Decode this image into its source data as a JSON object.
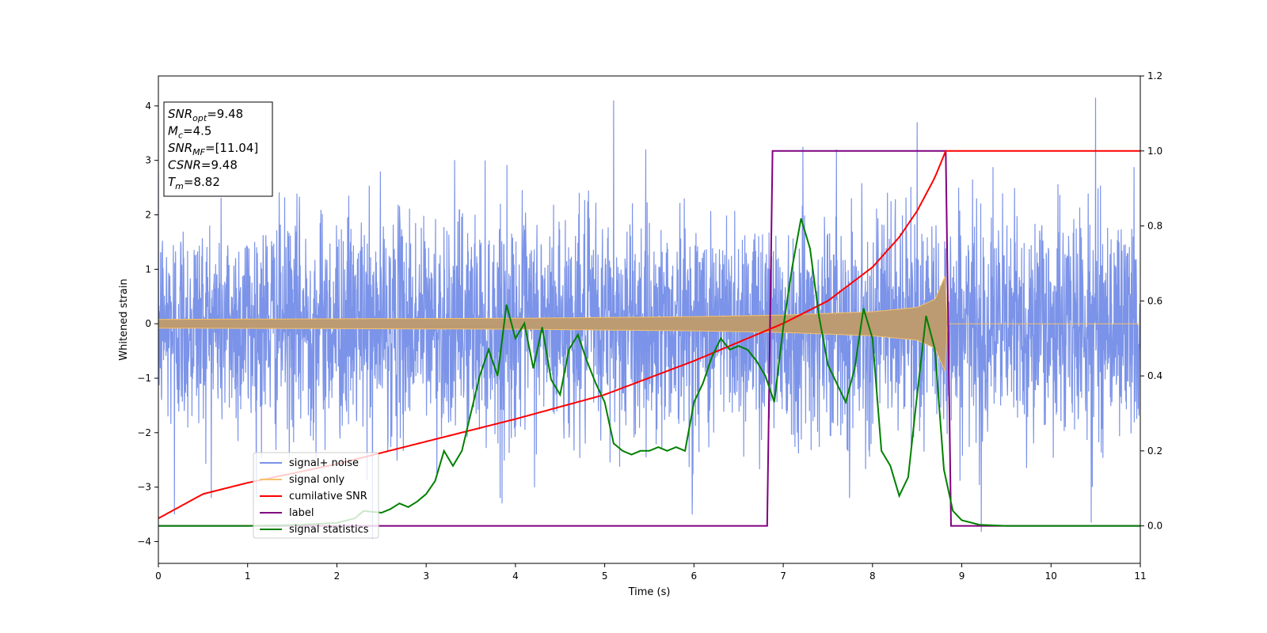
{
  "chart_data": {
    "type": "line",
    "xlabel": "Time (s)",
    "ylabel": "Whitened strain",
    "xlim": [
      0,
      11
    ],
    "ylim_left": [
      -4.4,
      4.55
    ],
    "ylim_right": [
      -0.1,
      1.2
    ],
    "x_ticks": [
      "0",
      "1",
      "2",
      "3",
      "4",
      "5",
      "6",
      "7",
      "8",
      "9",
      "10",
      "11"
    ],
    "y_ticks_left": [
      "−4",
      "−3",
      "−2",
      "−1",
      "0",
      "1",
      "2",
      "3",
      "4"
    ],
    "y_ticks_right": [
      "0.0",
      "0.2",
      "0.4",
      "0.6",
      "0.8",
      "1.0",
      "1.2"
    ],
    "annotation": {
      "lines": [
        {
          "name": "SNR",
          "sub": "opt",
          "value": "=9.48"
        },
        {
          "name": "M",
          "sub": "c",
          "value": "=4.5"
        },
        {
          "name": "SNR",
          "sub": "MF",
          "value": "=[11.04]"
        },
        {
          "name": "CSNR",
          "sub": "",
          "value": "=9.48"
        },
        {
          "name": "T",
          "sub": "m",
          "value": "=8.82"
        }
      ]
    },
    "legend": {
      "placement": "lower-left",
      "entries": [
        {
          "label": "signal+ noise",
          "color": "#7b93e8"
        },
        {
          "label": "signal only",
          "color": "#f5c26b"
        },
        {
          "label": "cumilative SNR",
          "color": "#ff0000"
        },
        {
          "label": "label",
          "color": "#800080"
        },
        {
          "label": "signal statistics",
          "color": "#008000"
        }
      ]
    },
    "series": [
      {
        "name": "signal+ noise",
        "axis": "left",
        "color": "#7b93e8",
        "noise_std": 1.0,
        "x_range": [
          0,
          11
        ],
        "extreme_peaks": [
          {
            "x": 5.1,
            "y": 4.1
          },
          {
            "x": 10.5,
            "y": 4.15
          },
          {
            "x": 8.5,
            "y": 3.7
          },
          {
            "x": 2.4,
            "y": 3.4
          },
          {
            "x": 7.22,
            "y": 3.25
          },
          {
            "x": 0.18,
            "y": -3.5
          },
          {
            "x": 2.4,
            "y": -3.95
          },
          {
            "x": 9.22,
            "y": -3.82
          },
          {
            "x": 10.45,
            "y": -3.65
          },
          {
            "x": 5.98,
            "y": -3.5
          },
          {
            "x": 3.85,
            "y": -3.3
          }
        ]
      },
      {
        "name": "signal only",
        "axis": "left",
        "color": "#f5c26b",
        "envelope_points": [
          {
            "x": 0,
            "y": 0.08
          },
          {
            "x": 2,
            "y": 0.09
          },
          {
            "x": 4,
            "y": 0.1
          },
          {
            "x": 6,
            "y": 0.13
          },
          {
            "x": 7,
            "y": 0.16
          },
          {
            "x": 8,
            "y": 0.22
          },
          {
            "x": 8.5,
            "y": 0.3
          },
          {
            "x": 8.7,
            "y": 0.45
          },
          {
            "x": 8.78,
            "y": 0.75
          },
          {
            "x": 8.82,
            "y": 0.9
          },
          {
            "x": 8.83,
            "y": 0
          },
          {
            "x": 11,
            "y": 0
          }
        ]
      },
      {
        "name": "cumilative SNR",
        "axis": "right",
        "color": "#ff0000",
        "points": [
          {
            "x": 0,
            "y": 0.02
          },
          {
            "x": 0.5,
            "y": 0.085
          },
          {
            "x": 1,
            "y": 0.115
          },
          {
            "x": 2,
            "y": 0.165
          },
          {
            "x": 3,
            "y": 0.225
          },
          {
            "x": 4,
            "y": 0.285
          },
          {
            "x": 5,
            "y": 0.35
          },
          {
            "x": 6,
            "y": 0.44
          },
          {
            "x": 7,
            "y": 0.54
          },
          {
            "x": 7.5,
            "y": 0.6
          },
          {
            "x": 8,
            "y": 0.69
          },
          {
            "x": 8.3,
            "y": 0.77
          },
          {
            "x": 8.5,
            "y": 0.84
          },
          {
            "x": 8.7,
            "y": 0.93
          },
          {
            "x": 8.82,
            "y": 1.0
          },
          {
            "x": 11,
            "y": 1.0
          }
        ]
      },
      {
        "name": "label",
        "axis": "right",
        "color": "#800080",
        "points": [
          {
            "x": 0,
            "y": 0.0
          },
          {
            "x": 6.82,
            "y": 0.0
          },
          {
            "x": 6.88,
            "y": 1.0
          },
          {
            "x": 8.82,
            "y": 1.0
          },
          {
            "x": 8.88,
            "y": 0.0
          },
          {
            "x": 11,
            "y": 0.0
          }
        ]
      },
      {
        "name": "signal statistics",
        "axis": "right",
        "color": "#008000",
        "points": [
          {
            "x": 0,
            "y": 0.0
          },
          {
            "x": 1,
            "y": 0.0
          },
          {
            "x": 1.6,
            "y": 0.003
          },
          {
            "x": 2.0,
            "y": 0.008
          },
          {
            "x": 2.2,
            "y": 0.02
          },
          {
            "x": 2.3,
            "y": 0.04
          },
          {
            "x": 2.5,
            "y": 0.035
          },
          {
            "x": 2.6,
            "y": 0.045
          },
          {
            "x": 2.7,
            "y": 0.06
          },
          {
            "x": 2.8,
            "y": 0.05
          },
          {
            "x": 2.9,
            "y": 0.065
          },
          {
            "x": 3.0,
            "y": 0.085
          },
          {
            "x": 3.1,
            "y": 0.12
          },
          {
            "x": 3.2,
            "y": 0.2
          },
          {
            "x": 3.3,
            "y": 0.16
          },
          {
            "x": 3.4,
            "y": 0.2
          },
          {
            "x": 3.5,
            "y": 0.3
          },
          {
            "x": 3.6,
            "y": 0.4
          },
          {
            "x": 3.7,
            "y": 0.47
          },
          {
            "x": 3.8,
            "y": 0.4
          },
          {
            "x": 3.9,
            "y": 0.59
          },
          {
            "x": 4.0,
            "y": 0.5
          },
          {
            "x": 4.1,
            "y": 0.54
          },
          {
            "x": 4.2,
            "y": 0.42
          },
          {
            "x": 4.3,
            "y": 0.53
          },
          {
            "x": 4.4,
            "y": 0.39
          },
          {
            "x": 4.5,
            "y": 0.35
          },
          {
            "x": 4.6,
            "y": 0.47
          },
          {
            "x": 4.7,
            "y": 0.51
          },
          {
            "x": 4.8,
            "y": 0.44
          },
          {
            "x": 4.9,
            "y": 0.38
          },
          {
            "x": 5.0,
            "y": 0.33
          },
          {
            "x": 5.1,
            "y": 0.22
          },
          {
            "x": 5.2,
            "y": 0.2
          },
          {
            "x": 5.3,
            "y": 0.19
          },
          {
            "x": 5.4,
            "y": 0.2
          },
          {
            "x": 5.5,
            "y": 0.2
          },
          {
            "x": 5.6,
            "y": 0.21
          },
          {
            "x": 5.7,
            "y": 0.2
          },
          {
            "x": 5.8,
            "y": 0.21
          },
          {
            "x": 5.9,
            "y": 0.2
          },
          {
            "x": 6.0,
            "y": 0.33
          },
          {
            "x": 6.1,
            "y": 0.38
          },
          {
            "x": 6.2,
            "y": 0.45
          },
          {
            "x": 6.3,
            "y": 0.5
          },
          {
            "x": 6.4,
            "y": 0.47
          },
          {
            "x": 6.5,
            "y": 0.48
          },
          {
            "x": 6.6,
            "y": 0.47
          },
          {
            "x": 6.7,
            "y": 0.44
          },
          {
            "x": 6.8,
            "y": 0.4
          },
          {
            "x": 6.9,
            "y": 0.33
          },
          {
            "x": 7.0,
            "y": 0.53
          },
          {
            "x": 7.1,
            "y": 0.69
          },
          {
            "x": 7.2,
            "y": 0.82
          },
          {
            "x": 7.3,
            "y": 0.74
          },
          {
            "x": 7.4,
            "y": 0.56
          },
          {
            "x": 7.5,
            "y": 0.43
          },
          {
            "x": 7.6,
            "y": 0.38
          },
          {
            "x": 7.7,
            "y": 0.33
          },
          {
            "x": 7.8,
            "y": 0.42
          },
          {
            "x": 7.9,
            "y": 0.58
          },
          {
            "x": 8.0,
            "y": 0.5
          },
          {
            "x": 8.1,
            "y": 0.2
          },
          {
            "x": 8.2,
            "y": 0.16
          },
          {
            "x": 8.3,
            "y": 0.08
          },
          {
            "x": 8.4,
            "y": 0.13
          },
          {
            "x": 8.5,
            "y": 0.35
          },
          {
            "x": 8.6,
            "y": 0.56
          },
          {
            "x": 8.7,
            "y": 0.47
          },
          {
            "x": 8.8,
            "y": 0.15
          },
          {
            "x": 8.9,
            "y": 0.04
          },
          {
            "x": 9.0,
            "y": 0.015
          },
          {
            "x": 9.2,
            "y": 0.003
          },
          {
            "x": 9.5,
            "y": 0.0
          },
          {
            "x": 11,
            "y": 0.0
          }
        ]
      }
    ]
  }
}
